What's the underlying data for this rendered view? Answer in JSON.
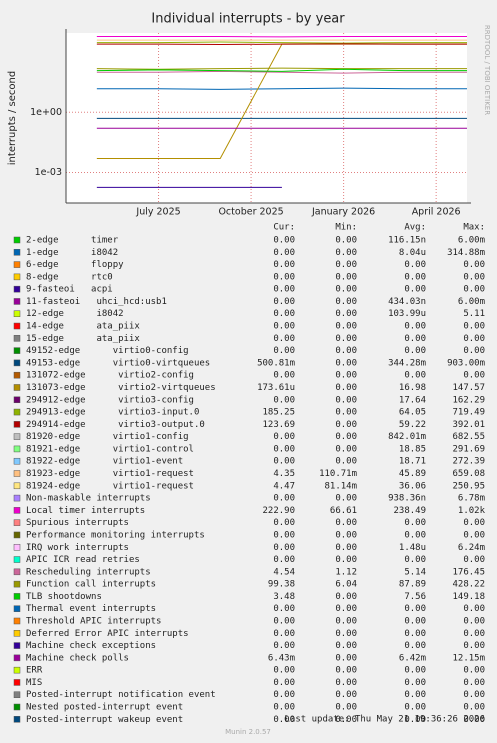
{
  "chart_data": {
    "type": "line",
    "log_scale": true,
    "grid": true,
    "title": "Individual interrupts - by year",
    "y_label": "interrupts / second",
    "credit": "RRDTOOL / TOBI OETIKER",
    "last_update": "Last update: Thu May 21 19:36:26 2026",
    "footer": "Munin 2.0.57",
    "legend_columns": [
      "Cur:",
      "Min:",
      "Avg:",
      "Max:"
    ],
    "ylim": [
      3e-05,
      9000
    ],
    "yticks": [
      {
        "value": 1,
        "label": "1e+00"
      },
      {
        "value": 0.001,
        "label": "1e-03"
      }
    ],
    "xlim": [
      "2025-04",
      "2026-05"
    ],
    "xticks": [
      {
        "value": "2025-07",
        "label": "July 2025"
      },
      {
        "value": "2025-10",
        "label": "October 2025"
      },
      {
        "value": "2026-01",
        "label": "January 2026"
      },
      {
        "value": "2026-04",
        "label": "April 2026"
      }
    ],
    "x": [
      "2025-05",
      "2025-07",
      "2025-09",
      "2025-11",
      "2026-01",
      "2026-03",
      "2026-05"
    ],
    "series": [
      {
        "name": "2-edge      timer",
        "color": "#00cc00",
        "values": [
          null,
          null,
          null,
          null,
          null,
          null,
          null
        ],
        "cur": "0.00",
        "min": "0.00",
        "avg": "116.15n",
        "max": "6.00m"
      },
      {
        "name": "1-edge      i8042",
        "color": "#0066b3",
        "values": [
          15,
          15,
          14,
          15,
          16,
          15,
          15
        ],
        "cur": "0.00",
        "min": "0.00",
        "avg": "8.04u",
        "max": "314.88m"
      },
      {
        "name": "6-edge      floppy",
        "color": "#ff8000",
        "values": [
          null,
          null,
          null,
          null,
          null,
          null,
          null
        ],
        "cur": "0.00",
        "min": "0.00",
        "avg": "0.00",
        "max": "0.00"
      },
      {
        "name": "8-edge      rtc0",
        "color": "#ffcc00",
        "values": [
          null,
          null,
          null,
          null,
          null,
          null,
          null
        ],
        "cur": "0.00",
        "min": "0.00",
        "avg": "0.00",
        "max": "0.00"
      },
      {
        "name": "9-fasteoi   acpi",
        "color": "#330099",
        "values": [
          0.00018,
          0.00018,
          0.00018,
          0.00018,
          null,
          null,
          null
        ],
        "cur": "0.00",
        "min": "0.00",
        "avg": "0.00",
        "max": "0.00"
      },
      {
        "name": "11-fasteoi   uhci_hcd:usb1",
        "color": "#990099",
        "values": [
          null,
          null,
          null,
          null,
          null,
          null,
          null
        ],
        "cur": "0.00",
        "min": "0.00",
        "avg": "434.03n",
        "max": "6.00m"
      },
      {
        "name": "12-edge      i8042",
        "color": "#ccff00",
        "values": [
          null,
          null,
          null,
          null,
          null,
          null,
          null
        ],
        "cur": "0.00",
        "min": "0.00",
        "avg": "103.99u",
        "max": "5.11"
      },
      {
        "name": "14-edge      ata_piix",
        "color": "#ff0000",
        "values": [
          null,
          null,
          null,
          null,
          null,
          null,
          null
        ],
        "cur": "0.00",
        "min": "0.00",
        "avg": "0.00",
        "max": "0.00"
      },
      {
        "name": "15-edge      ata_piix",
        "color": "#808080",
        "values": [
          null,
          null,
          null,
          null,
          null,
          null,
          null
        ],
        "cur": "0.00",
        "min": "0.00",
        "avg": "0.00",
        "max": "0.00"
      },
      {
        "name": "49152-edge      virtio0-config",
        "color": "#008f00",
        "values": [
          null,
          null,
          null,
          null,
          null,
          null,
          null
        ],
        "cur": "0.00",
        "min": "0.00",
        "avg": "0.00",
        "max": "0.00"
      },
      {
        "name": "49153-edge      virtio0-virtqueues",
        "color": "#00487d",
        "values": [
          0.5,
          0.5,
          0.5,
          0.5,
          0.5,
          0.5,
          0.5
        ],
        "cur": "500.81m",
        "min": "0.00",
        "avg": "344.28m",
        "max": "903.00m"
      },
      {
        "name": "131072-edge      virtio2-config",
        "color": "#b35a00",
        "values": [
          null,
          null,
          null,
          null,
          null,
          null,
          null
        ],
        "cur": "0.00",
        "min": "0.00",
        "avg": "0.00",
        "max": "0.00"
      },
      {
        "name": "131073-edge      virtio2-virtqueues",
        "color": "#b38f00",
        "values": [
          0.005,
          0.005,
          0.005,
          2500,
          2500,
          2500,
          2500
        ],
        "cur": "173.61u",
        "min": "0.00",
        "avg": "16.98",
        "max": "147.57"
      },
      {
        "name": "294912-edge      virtio3-config",
        "color": "#6b006b",
        "values": [
          null,
          null,
          null,
          null,
          null,
          null,
          null
        ],
        "cur": "0.00",
        "min": "0.00",
        "avg": "17.64",
        "max": "162.29"
      },
      {
        "name": "294913-edge      virtio3-input.0",
        "color": "#8fb300",
        "values": [
          3000,
          3000,
          3200,
          3000,
          2800,
          3000,
          3000
        ],
        "cur": "185.25",
        "min": "0.00",
        "avg": "64.05",
        "max": "719.49"
      },
      {
        "name": "294914-edge      virtio3-output.0",
        "color": "#b30000",
        "values": [
          2500,
          2500,
          2400,
          2500,
          2600,
          2500,
          2500
        ],
        "cur": "123.69",
        "min": "0.00",
        "avg": "59.22",
        "max": "392.01"
      },
      {
        "name": "81920-edge      virtio1-config",
        "color": "#bebebe",
        "values": [
          null,
          null,
          null,
          null,
          null,
          null,
          null
        ],
        "cur": "0.00",
        "min": "0.00",
        "avg": "842.01m",
        "max": "682.55"
      },
      {
        "name": "81921-edge      virtio1-control",
        "color": "#80ff80",
        "values": [
          null,
          null,
          null,
          null,
          null,
          null,
          null
        ],
        "cur": "0.00",
        "min": "0.00",
        "avg": "18.85",
        "max": "291.69"
      },
      {
        "name": "81922-edge      virtio1-event",
        "color": "#80c9ff",
        "values": [
          null,
          null,
          null,
          null,
          null,
          null,
          null
        ],
        "cur": "0.00",
        "min": "0.00",
        "avg": "18.71",
        "max": "272.39"
      },
      {
        "name": "81923-edge      virtio1-request",
        "color": "#ffc080",
        "values": [
          4000,
          4000,
          4000,
          4000,
          4000,
          4000,
          4000
        ],
        "cur": "4.35",
        "min": "110.71m",
        "avg": "45.89",
        "max": "659.08"
      },
      {
        "name": "81924-edge      virtio1-request",
        "color": "#ffe680",
        "values": [
          null,
          null,
          null,
          null,
          null,
          null,
          null
        ],
        "cur": "4.47",
        "min": "81.14m",
        "avg": "36.06",
        "max": "250.95"
      },
      {
        "name": "Non-maskable interrupts",
        "color": "#aa80ff",
        "values": [
          null,
          null,
          null,
          null,
          null,
          null,
          null
        ],
        "cur": "0.00",
        "min": "0.00",
        "avg": "938.36n",
        "max": "6.78m"
      },
      {
        "name": "Local timer interrupts",
        "color": "#ee00cc",
        "values": [
          6000,
          6000,
          6000,
          5800,
          6000,
          6000,
          6000
        ],
        "cur": "222.90",
        "min": "66.61",
        "avg": "238.49",
        "max": "1.02k"
      },
      {
        "name": "Spurious interrupts",
        "color": "#ff8080",
        "values": [
          null,
          null,
          null,
          null,
          null,
          null,
          null
        ],
        "cur": "0.00",
        "min": "0.00",
        "avg": "0.00",
        "max": "0.00"
      },
      {
        "name": "Performance monitoring interrupts",
        "color": "#666600",
        "values": [
          null,
          null,
          null,
          null,
          null,
          null,
          null
        ],
        "cur": "0.00",
        "min": "0.00",
        "avg": "0.00",
        "max": "0.00"
      },
      {
        "name": "IRQ work interrupts",
        "color": "#ffbfff",
        "values": [
          null,
          null,
          null,
          null,
          null,
          null,
          null
        ],
        "cur": "0.00",
        "min": "0.00",
        "avg": "1.48u",
        "max": "6.24m"
      },
      {
        "name": "APIC ICR read retries",
        "color": "#00ffcc",
        "values": [
          null,
          null,
          null,
          null,
          null,
          null,
          null
        ],
        "cur": "0.00",
        "min": "0.00",
        "avg": "0.00",
        "max": "0.00"
      },
      {
        "name": "Rescheduling interrupts",
        "color": "#cc6699",
        "values": [
          100,
          100,
          110,
          100,
          90,
          100,
          100
        ],
        "cur": "4.54",
        "min": "1.12",
        "avg": "5.14",
        "max": "176.45"
      },
      {
        "name": "Function call interrupts",
        "color": "#999900",
        "values": [
          150,
          140,
          150,
          160,
          150,
          150,
          150
        ],
        "cur": "99.38",
        "min": "6.04",
        "avg": "87.89",
        "max": "428.22"
      },
      {
        "name": "TLB shootdowns",
        "color": "#00cc00",
        "values": [
          120,
          130,
          120,
          110,
          140,
          120,
          120
        ],
        "cur": "3.48",
        "min": "0.00",
        "avg": "7.56",
        "max": "149.18"
      },
      {
        "name": "Thermal event interrupts",
        "color": "#0066b3",
        "values": [
          null,
          null,
          null,
          null,
          null,
          null,
          null
        ],
        "cur": "0.00",
        "min": "0.00",
        "avg": "0.00",
        "max": "0.00"
      },
      {
        "name": "Threshold APIC interrupts",
        "color": "#ff8000",
        "values": [
          null,
          null,
          null,
          null,
          null,
          null,
          null
        ],
        "cur": "0.00",
        "min": "0.00",
        "avg": "0.00",
        "max": "0.00"
      },
      {
        "name": "Deferred Error APIC interrupts",
        "color": "#ffcc00",
        "values": [
          null,
          null,
          null,
          null,
          null,
          null,
          null
        ],
        "cur": "0.00",
        "min": "0.00",
        "avg": "0.00",
        "max": "0.00"
      },
      {
        "name": "Machine check exceptions",
        "color": "#330099",
        "values": [
          null,
          null,
          null,
          null,
          null,
          null,
          null
        ],
        "cur": "0.00",
        "min": "0.00",
        "avg": "0.00",
        "max": "0.00"
      },
      {
        "name": "Machine check polls",
        "color": "#990099",
        "values": [
          0.16,
          0.16,
          0.16,
          0.16,
          0.16,
          0.16,
          0.16
        ],
        "cur": "6.43m",
        "min": "0.00",
        "avg": "6.42m",
        "max": "12.15m"
      },
      {
        "name": "ERR",
        "color": "#ccff00",
        "values": [
          null,
          null,
          null,
          null,
          null,
          null,
          null
        ],
        "cur": "0.00",
        "min": "0.00",
        "avg": "0.00",
        "max": "0.00"
      },
      {
        "name": "MIS",
        "color": "#ff0000",
        "values": [
          null,
          null,
          null,
          null,
          null,
          null,
          null
        ],
        "cur": "0.00",
        "min": "0.00",
        "avg": "0.00",
        "max": "0.00"
      },
      {
        "name": "Posted-interrupt notification event",
        "color": "#808080",
        "values": [
          null,
          null,
          null,
          null,
          null,
          null,
          null
        ],
        "cur": "0.00",
        "min": "0.00",
        "avg": "0.00",
        "max": "0.00"
      },
      {
        "name": "Nested posted-interrupt event",
        "color": "#008f00",
        "values": [
          null,
          null,
          null,
          null,
          null,
          null,
          null
        ],
        "cur": "0.00",
        "min": "0.00",
        "avg": "0.00",
        "max": "0.00"
      },
      {
        "name": "Posted-interrupt wakeup event",
        "color": "#00487d",
        "values": [
          null,
          null,
          null,
          null,
          null,
          null,
          null
        ],
        "cur": "0.00",
        "min": "0.00",
        "avg": "0.00",
        "max": "0.00"
      }
    ]
  }
}
